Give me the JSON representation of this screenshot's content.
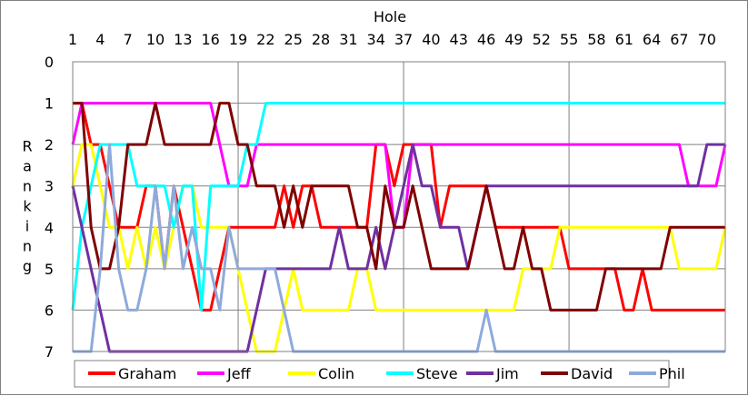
{
  "chart_data": {
    "type": "line",
    "xlabel": "Hole",
    "ylabel": "Ranking",
    "xlim": [
      1,
      72
    ],
    "ylim": [
      0,
      7
    ],
    "y_reversed": true,
    "x_ticks": [
      1,
      4,
      7,
      10,
      13,
      16,
      19,
      22,
      25,
      28,
      31,
      34,
      37,
      40,
      43,
      46,
      49,
      52,
      55,
      58,
      61,
      64,
      67,
      70
    ],
    "x_tick_labels": [
      "1",
      "4",
      "7",
      "10",
      "13",
      "16",
      "19",
      "22",
      "25",
      "28",
      "31",
      "34",
      "37",
      "40",
      "43",
      "46",
      "49",
      "52",
      "55",
      "58",
      "61",
      "64",
      "67",
      "70"
    ],
    "y_ticks": [
      0,
      1,
      2,
      3,
      4,
      5,
      6,
      7
    ],
    "y_tick_labels": [
      "0",
      "1",
      "2",
      "3",
      "4",
      "5",
      "6",
      "7"
    ],
    "x_axis_position": "top",
    "vertical_gridlines_at": [
      19,
      37,
      55
    ],
    "horizontal_gridlines": true,
    "legend_position": "bottom",
    "series": [
      {
        "name": "Graham",
        "color": "#ff0000",
        "values": [
          1,
          1,
          2,
          2,
          3,
          4,
          4,
          4,
          3,
          3,
          5,
          3,
          4,
          5,
          6,
          6,
          5,
          4,
          4,
          4,
          4,
          4,
          4,
          3,
          4,
          3,
          3,
          4,
          4,
          4,
          4,
          4,
          4,
          2,
          2,
          3,
          2,
          2,
          2,
          2,
          4,
          3,
          3,
          3,
          3,
          3,
          4,
          4,
          4,
          4,
          4,
          4,
          4,
          4,
          5,
          5,
          5,
          5,
          5,
          5,
          6,
          6,
          5,
          6,
          6,
          6,
          6,
          6,
          6,
          6,
          6,
          6
        ]
      },
      {
        "name": "Jeff",
        "color": "#ff00ff",
        "values": [
          2,
          1,
          1,
          1,
          1,
          1,
          1,
          1,
          1,
          1,
          1,
          1,
          1,
          1,
          1,
          1,
          2,
          3,
          3,
          3,
          2,
          2,
          2,
          2,
          2,
          2,
          2,
          2,
          2,
          2,
          2,
          2,
          2,
          2,
          2,
          4,
          4,
          2,
          2,
          2,
          2,
          2,
          2,
          2,
          2,
          2,
          2,
          2,
          2,
          2,
          2,
          2,
          2,
          2,
          2,
          2,
          2,
          2,
          2,
          2,
          2,
          2,
          2,
          2,
          2,
          2,
          2,
          3,
          3,
          3,
          3,
          2
        ]
      },
      {
        "name": "Colin",
        "color": "#ffff00",
        "values": [
          3,
          2,
          2,
          3,
          4,
          4,
          5,
          4,
          5,
          4,
          5,
          4,
          3,
          3,
          4,
          4,
          4,
          4,
          5,
          6,
          7,
          7,
          7,
          6,
          5,
          6,
          6,
          6,
          6,
          6,
          6,
          5,
          5,
          6,
          6,
          6,
          6,
          6,
          6,
          6,
          6,
          6,
          6,
          6,
          6,
          6,
          6,
          6,
          6,
          5,
          5,
          5,
          5,
          4,
          4,
          4,
          4,
          4,
          4,
          4,
          4,
          4,
          4,
          4,
          4,
          4,
          5,
          5,
          5,
          5,
          5,
          4
        ]
      },
      {
        "name": "Steve",
        "color": "#00ffff",
        "values": [
          6,
          4,
          3,
          2,
          2,
          2,
          2,
          3,
          3,
          3,
          3,
          4,
          3,
          3,
          6,
          3,
          3,
          3,
          3,
          2,
          2,
          1,
          1,
          1,
          1,
          1,
          1,
          1,
          1,
          1,
          1,
          1,
          1,
          1,
          1,
          1,
          1,
          1,
          1,
          1,
          1,
          1,
          1,
          1,
          1,
          1,
          1,
          1,
          1,
          1,
          1,
          1,
          1,
          1,
          1,
          1,
          1,
          1,
          1,
          1,
          1,
          1,
          1,
          1,
          1,
          1,
          1,
          1,
          1,
          1,
          1,
          1
        ]
      },
      {
        "name": "Jim",
        "color": "#7030a0",
        "values": [
          3,
          4,
          5,
          6,
          7,
          7,
          7,
          7,
          7,
          7,
          7,
          7,
          7,
          7,
          7,
          7,
          7,
          7,
          7,
          7,
          6,
          5,
          5,
          5,
          5,
          5,
          5,
          5,
          5,
          4,
          5,
          5,
          5,
          4,
          5,
          4,
          3,
          2,
          3,
          3,
          4,
          4,
          4,
          5,
          4,
          3,
          3,
          3,
          3,
          3,
          3,
          3,
          3,
          3,
          3,
          3,
          3,
          3,
          3,
          3,
          3,
          3,
          3,
          3,
          3,
          3,
          3,
          3,
          3,
          2,
          2,
          2
        ]
      },
      {
        "name": "David",
        "color": "#800000",
        "values": [
          1,
          1,
          4,
          5,
          5,
          4,
          2,
          2,
          2,
          1,
          2,
          2,
          2,
          2,
          2,
          2,
          1,
          1,
          2,
          2,
          3,
          3,
          3,
          4,
          3,
          4,
          3,
          3,
          3,
          3,
          3,
          4,
          4,
          5,
          3,
          4,
          4,
          3,
          4,
          5,
          5,
          5,
          5,
          5,
          4,
          3,
          4,
          5,
          5,
          4,
          5,
          5,
          6,
          6,
          6,
          6,
          6,
          6,
          5,
          5,
          5,
          5,
          5,
          5,
          5,
          4,
          4,
          4,
          4,
          4,
          4,
          4
        ]
      },
      {
        "name": "Phil",
        "color": "#8eaadb",
        "values": [
          7,
          7,
          7,
          5,
          2,
          5,
          6,
          6,
          5,
          3,
          5,
          3,
          5,
          4,
          5,
          5,
          6,
          4,
          5,
          5,
          5,
          5,
          5,
          6,
          7,
          7,
          7,
          7,
          7,
          7,
          7,
          7,
          7,
          7,
          7,
          7,
          7,
          7,
          7,
          7,
          7,
          7,
          7,
          7,
          7,
          6,
          7,
          7,
          7,
          7,
          7,
          7,
          7,
          7,
          7,
          7,
          7,
          7,
          7,
          7,
          7,
          7,
          7,
          7,
          7,
          7,
          7,
          7,
          7,
          7,
          7,
          7
        ]
      }
    ]
  }
}
